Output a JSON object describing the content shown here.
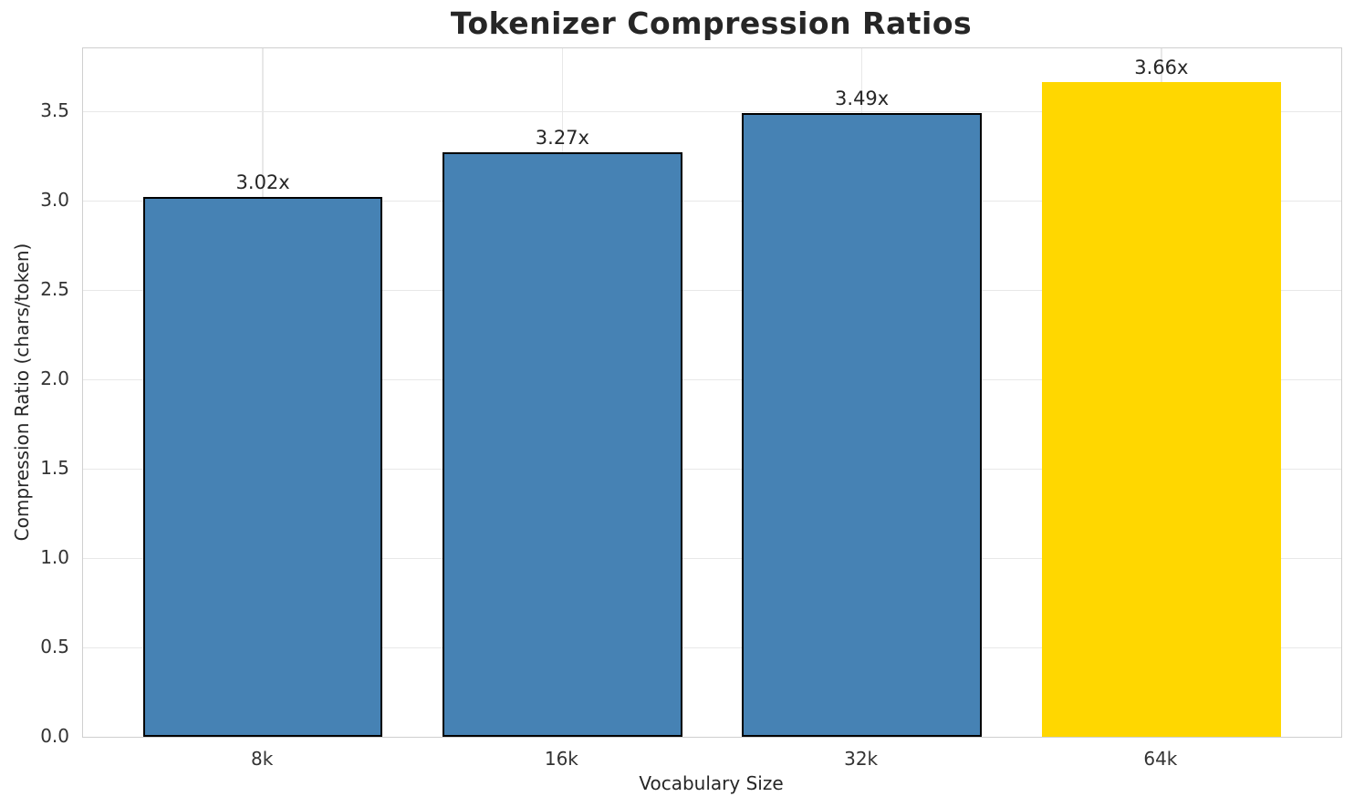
{
  "chart_data": {
    "type": "bar",
    "title": "Tokenizer Compression Ratios",
    "xlabel": "Vocabulary Size",
    "ylabel": "Compression Ratio (chars/token)",
    "categories": [
      "8k",
      "16k",
      "32k",
      "64k"
    ],
    "values": [
      3.02,
      3.27,
      3.49,
      3.66
    ],
    "value_labels": [
      "3.02x",
      "3.27x",
      "3.49x",
      "3.66x"
    ],
    "bar_colors": [
      "#4682B4",
      "#4682B4",
      "#4682B4",
      "#FFD700"
    ],
    "bar_edge_colors": [
      "#000000",
      "#000000",
      "#000000",
      "none"
    ],
    "highlight_index": 3,
    "ylim": [
      0,
      3.85
    ],
    "yticks": [
      0.0,
      0.5,
      1.0,
      1.5,
      2.0,
      2.5,
      3.0,
      3.5
    ],
    "ytick_labels": [
      "0.0",
      "0.5",
      "1.0",
      "1.5",
      "2.0",
      "2.5",
      "3.0",
      "3.5"
    ],
    "grid": "both",
    "legend": "none",
    "colors": {
      "text": "#262626",
      "tick_text": "#333333",
      "gridline": "#e8e8e8",
      "spine": "#cfcfcf",
      "background": "#ffffff"
    }
  }
}
